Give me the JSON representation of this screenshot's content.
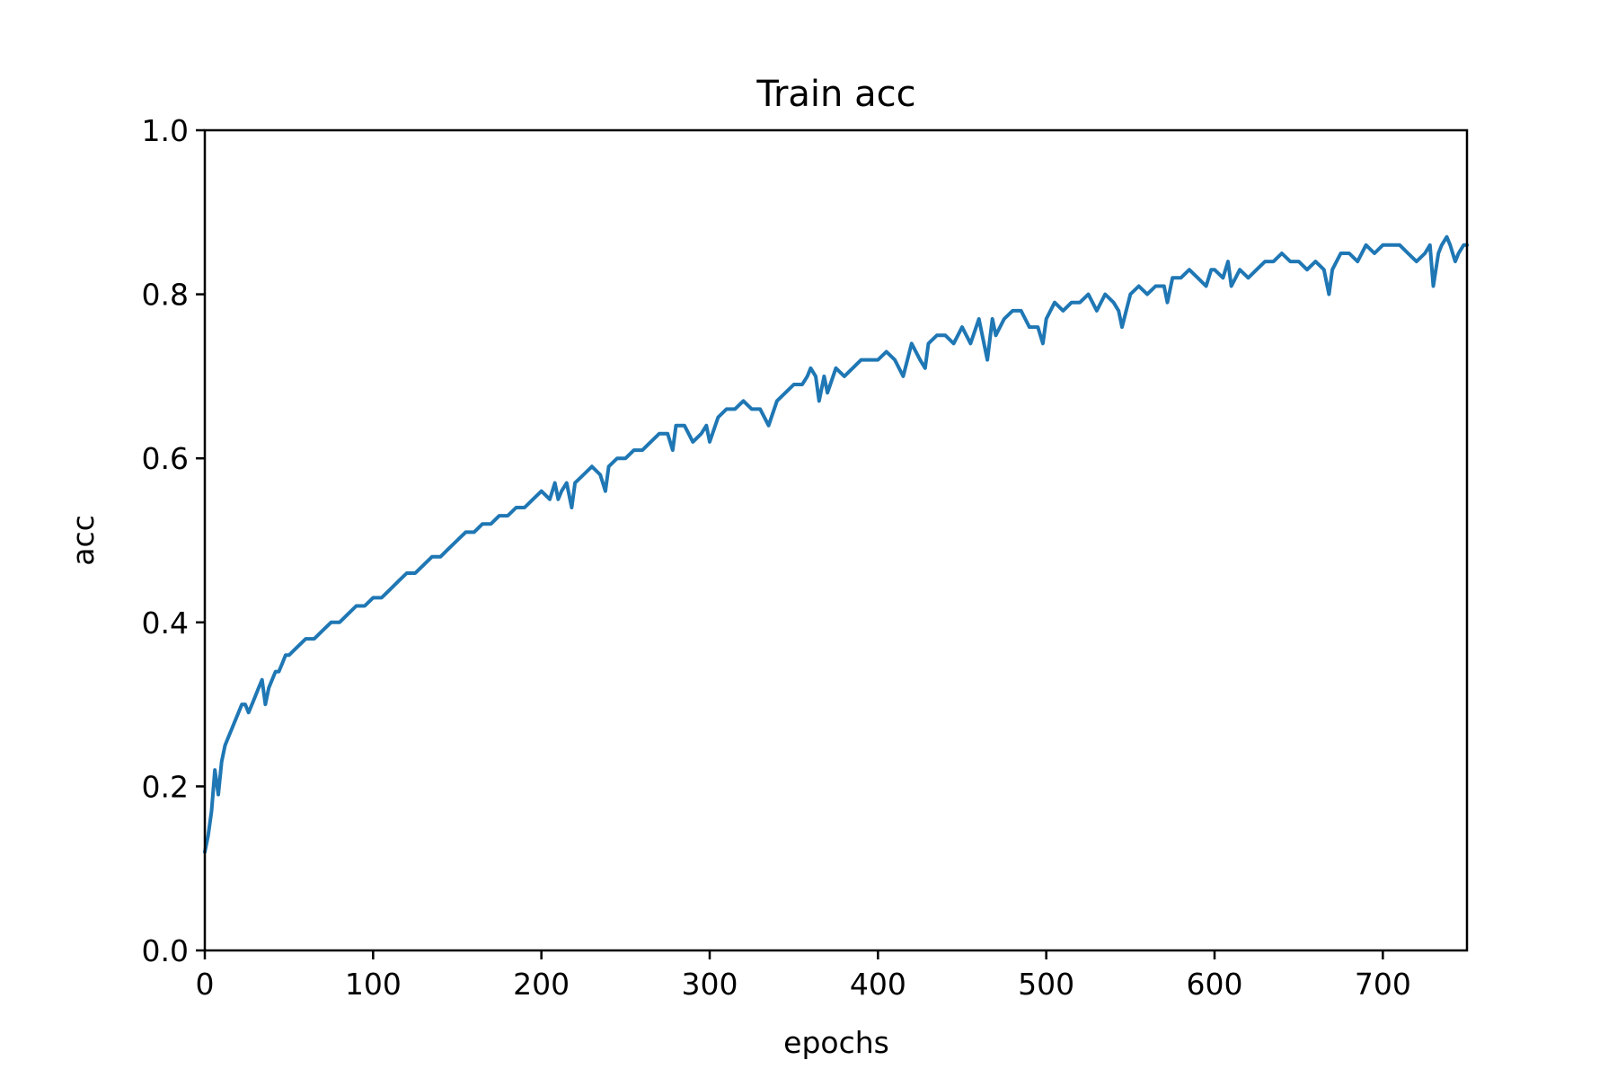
{
  "chart_data": {
    "type": "line",
    "title": "Train acc",
    "xlabel": "epochs",
    "ylabel": "acc",
    "xlim": [
      0,
      750
    ],
    "ylim": [
      0.0,
      1.0
    ],
    "grid": false,
    "legend": "none",
    "xticks": [
      {
        "value": 0,
        "label": "0"
      },
      {
        "value": 100,
        "label": "100"
      },
      {
        "value": 200,
        "label": "200"
      },
      {
        "value": 300,
        "label": "300"
      },
      {
        "value": 400,
        "label": "400"
      },
      {
        "value": 500,
        "label": "500"
      },
      {
        "value": 600,
        "label": "600"
      },
      {
        "value": 700,
        "label": "700"
      }
    ],
    "yticks": [
      {
        "value": 0.0,
        "label": "0.0"
      },
      {
        "value": 0.2,
        "label": "0.2"
      },
      {
        "value": 0.4,
        "label": "0.4"
      },
      {
        "value": 0.6,
        "label": "0.6"
      },
      {
        "value": 0.8,
        "label": "0.8"
      },
      {
        "value": 1.0,
        "label": "1.0"
      }
    ],
    "series": [
      {
        "color": "#1f77b4",
        "x": [
          0,
          2,
          4,
          6,
          8,
          10,
          12,
          14,
          16,
          18,
          20,
          22,
          24,
          26,
          28,
          30,
          32,
          34,
          36,
          38,
          40,
          42,
          44,
          46,
          48,
          50,
          55,
          60,
          65,
          70,
          75,
          80,
          85,
          90,
          95,
          100,
          105,
          110,
          115,
          120,
          125,
          130,
          135,
          140,
          145,
          150,
          155,
          160,
          165,
          170,
          175,
          180,
          185,
          190,
          195,
          200,
          205,
          208,
          210,
          212,
          215,
          218,
          220,
          225,
          230,
          235,
          238,
          240,
          245,
          250,
          255,
          260,
          265,
          270,
          275,
          278,
          280,
          285,
          290,
          295,
          298,
          300,
          305,
          310,
          315,
          320,
          325,
          330,
          335,
          340,
          345,
          350,
          355,
          358,
          360,
          363,
          365,
          368,
          370,
          375,
          380,
          385,
          390,
          395,
          400,
          405,
          410,
          415,
          420,
          425,
          428,
          430,
          435,
          440,
          445,
          450,
          455,
          460,
          465,
          468,
          470,
          475,
          480,
          485,
          490,
          495,
          498,
          500,
          505,
          510,
          515,
          520,
          525,
          530,
          535,
          540,
          543,
          545,
          550,
          555,
          560,
          565,
          570,
          572,
          575,
          580,
          585,
          590,
          595,
          598,
          600,
          605,
          608,
          610,
          615,
          620,
          625,
          630,
          635,
          640,
          645,
          650,
          655,
          660,
          665,
          668,
          670,
          675,
          680,
          685,
          690,
          695,
          700,
          705,
          710,
          715,
          720,
          725,
          728,
          730,
          733,
          735,
          738,
          740,
          743,
          745,
          748,
          750
        ],
        "y": [
          0.12,
          0.14,
          0.17,
          0.22,
          0.19,
          0.23,
          0.25,
          0.26,
          0.27,
          0.28,
          0.29,
          0.3,
          0.3,
          0.29,
          0.3,
          0.31,
          0.32,
          0.33,
          0.3,
          0.32,
          0.33,
          0.34,
          0.34,
          0.35,
          0.36,
          0.36,
          0.37,
          0.38,
          0.38,
          0.39,
          0.4,
          0.4,
          0.41,
          0.42,
          0.42,
          0.43,
          0.43,
          0.44,
          0.45,
          0.46,
          0.46,
          0.47,
          0.48,
          0.48,
          0.49,
          0.5,
          0.51,
          0.51,
          0.52,
          0.52,
          0.53,
          0.53,
          0.54,
          0.54,
          0.55,
          0.56,
          0.55,
          0.57,
          0.55,
          0.56,
          0.57,
          0.54,
          0.57,
          0.58,
          0.59,
          0.58,
          0.56,
          0.59,
          0.6,
          0.6,
          0.61,
          0.61,
          0.62,
          0.63,
          0.63,
          0.61,
          0.64,
          0.64,
          0.62,
          0.63,
          0.64,
          0.62,
          0.65,
          0.66,
          0.66,
          0.67,
          0.66,
          0.66,
          0.64,
          0.67,
          0.68,
          0.69,
          0.69,
          0.7,
          0.71,
          0.7,
          0.67,
          0.7,
          0.68,
          0.71,
          0.7,
          0.71,
          0.72,
          0.72,
          0.72,
          0.73,
          0.72,
          0.7,
          0.74,
          0.72,
          0.71,
          0.74,
          0.75,
          0.75,
          0.74,
          0.76,
          0.74,
          0.77,
          0.72,
          0.77,
          0.75,
          0.77,
          0.78,
          0.78,
          0.76,
          0.76,
          0.74,
          0.77,
          0.79,
          0.78,
          0.79,
          0.79,
          0.8,
          0.78,
          0.8,
          0.79,
          0.78,
          0.76,
          0.8,
          0.81,
          0.8,
          0.81,
          0.81,
          0.79,
          0.82,
          0.82,
          0.83,
          0.82,
          0.81,
          0.83,
          0.83,
          0.82,
          0.84,
          0.81,
          0.83,
          0.82,
          0.83,
          0.84,
          0.84,
          0.85,
          0.84,
          0.84,
          0.83,
          0.84,
          0.83,
          0.8,
          0.83,
          0.85,
          0.85,
          0.84,
          0.86,
          0.85,
          0.86,
          0.86,
          0.86,
          0.85,
          0.84,
          0.85,
          0.86,
          0.81,
          0.85,
          0.86,
          0.87,
          0.86,
          0.84,
          0.85,
          0.86,
          0.86
        ]
      }
    ]
  }
}
